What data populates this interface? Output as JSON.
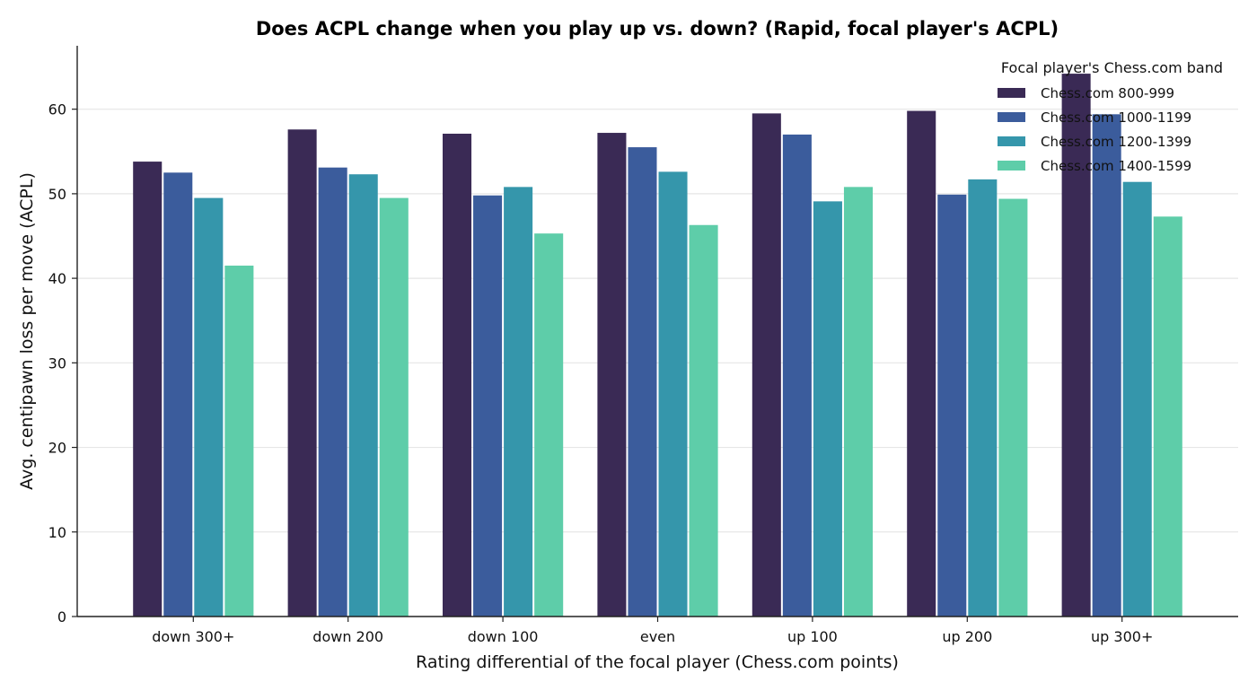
{
  "chart_data": {
    "type": "bar",
    "title": "Does ACPL change when you play up vs. down? (Rapid, focal player's ACPL)",
    "xlabel": "Rating differential of the focal player (Chess.com points)",
    "ylabel": "Avg. centipawn loss per move (ACPL)",
    "ylim": [
      0,
      67.5
    ],
    "yticks": [
      0,
      10,
      20,
      30,
      40,
      50,
      60
    ],
    "grid": "y",
    "legend": {
      "title": "Focal player's Chess.com band",
      "placement": "top-right"
    },
    "categories": [
      "down 300+",
      "down 200",
      "down 100",
      "even",
      "up 100",
      "up 200",
      "up 300+"
    ],
    "series": [
      {
        "name": "Chess.com 800-999",
        "color": "#3a2a55",
        "values": [
          53.8,
          57.6,
          57.1,
          57.2,
          59.5,
          59.8,
          64.2
        ]
      },
      {
        "name": "Chess.com 1000-1199",
        "color": "#3b5c9c",
        "values": [
          52.5,
          53.1,
          49.8,
          55.5,
          57.0,
          49.9,
          59.4
        ]
      },
      {
        "name": "Chess.com 1200-1399",
        "color": "#3596ab",
        "values": [
          49.5,
          52.3,
          50.8,
          52.6,
          49.1,
          51.7,
          51.4
        ]
      },
      {
        "name": "Chess.com 1400-1599",
        "color": "#5ecda9",
        "values": [
          41.5,
          49.5,
          45.3,
          46.3,
          50.8,
          49.4,
          47.3
        ]
      }
    ]
  }
}
